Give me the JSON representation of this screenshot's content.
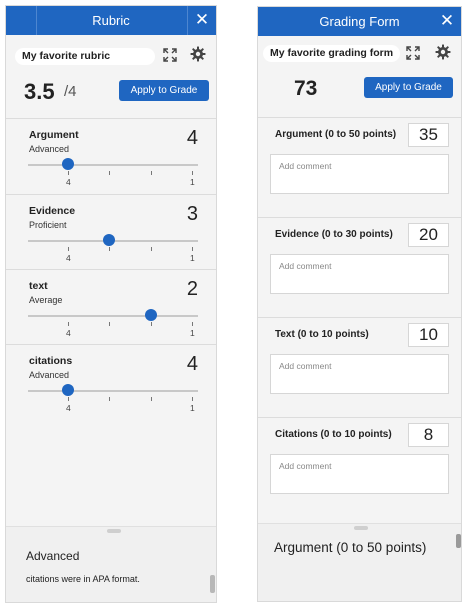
{
  "rubric": {
    "header": {
      "title": "Rubric",
      "close_icon": "close-icon"
    },
    "name": "My favorite rubric",
    "score": "3.5",
    "max": "/4",
    "apply_label": "Apply to Grade",
    "criteria": [
      {
        "name": "Argument",
        "level": "Advanced",
        "score": "4",
        "tick_left": "4",
        "tick_right": "1",
        "slider_value": 4
      },
      {
        "name": "Evidence",
        "level": "Proficient",
        "score": "3",
        "tick_left": "4",
        "tick_right": "1",
        "slider_value": 3
      },
      {
        "name": "text",
        "level": "Average",
        "score": "2",
        "tick_left": "4",
        "tick_right": "1",
        "slider_value": 2
      },
      {
        "name": "citations",
        "level": "Advanced",
        "score": "4",
        "tick_left": "4",
        "tick_right": "1",
        "slider_value": 4
      }
    ],
    "detail": {
      "title": "Advanced",
      "description": "citations were in APA format."
    }
  },
  "grading_form": {
    "header": {
      "title": "Grading Form",
      "close_icon": "close-icon"
    },
    "name": "My favorite grading form",
    "score": "73",
    "apply_label": "Apply to Grade",
    "sections": [
      {
        "label": "Argument (0 to 50 points)",
        "score": "35",
        "comment_placeholder": "Add comment"
      },
      {
        "label": "Evidence (0 to 30 points)",
        "score": "20",
        "comment_placeholder": "Add comment"
      },
      {
        "label": "Text (0 to 10 points)",
        "score": "10",
        "comment_placeholder": "Add comment"
      },
      {
        "label": "Citations (0 to 10 points)",
        "score": "8",
        "comment_placeholder": "Add comment"
      }
    ],
    "detail": {
      "title": "Argument (0 to 50 points)"
    }
  },
  "colors": {
    "accent": "#1f66c1",
    "panel_bg": "#f4f4f4"
  }
}
